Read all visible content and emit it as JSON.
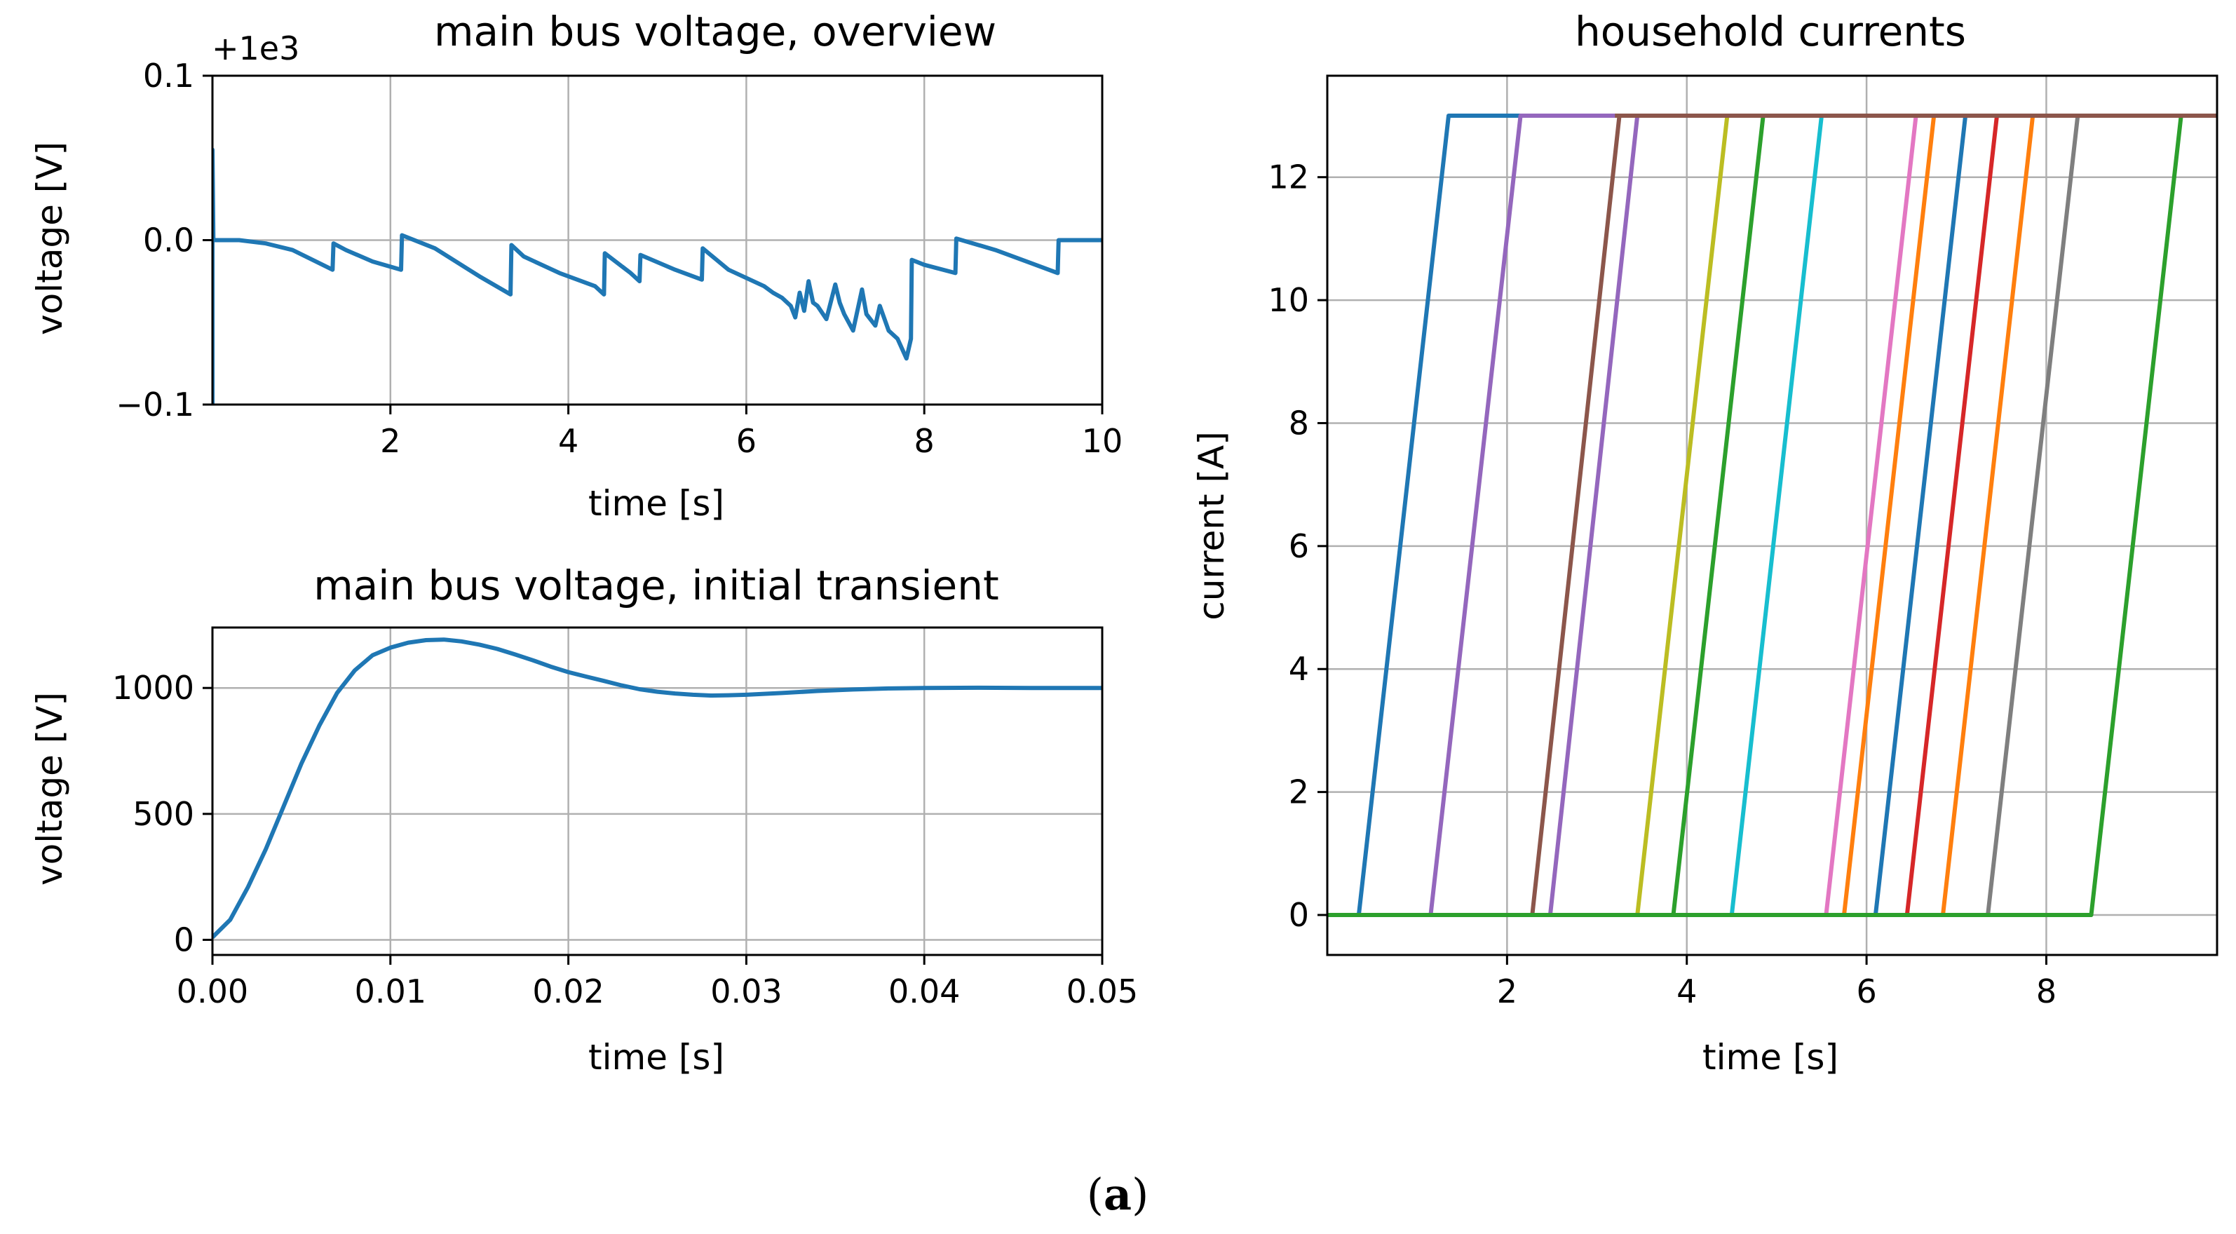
{
  "caption": {
    "open": "(",
    "letter": "a",
    "close": ")"
  },
  "chart_data": [
    {
      "type": "line",
      "title": "main bus voltage, overview",
      "offset_text": "+1e3",
      "xlabel": "time [s]",
      "ylabel": "voltage [V]",
      "xlim": [
        0.0,
        10.0
      ],
      "ylim": [
        -0.1,
        0.1
      ],
      "xticks": [
        2,
        4,
        6,
        8,
        10
      ],
      "xtick_labels": [
        "2",
        "4",
        "6",
        "8",
        "10"
      ],
      "yticks": [
        -0.1,
        0.0,
        0.1
      ],
      "ytick_labels": [
        "−0.1",
        "0.0",
        "0.1"
      ],
      "grid": true,
      "series": [
        {
          "color": "#1f77b4",
          "x": [
            0.0,
            0.0,
            0.01,
            0.01,
            0.3,
            0.6,
            0.9,
            1.2,
            1.35,
            1.36,
            1.5,
            1.8,
            2.12,
            2.13,
            2.5,
            3.0,
            3.35,
            3.36,
            3.5,
            3.9,
            4.3,
            4.4,
            4.41,
            4.7,
            4.8,
            4.81,
            5.2,
            5.5,
            5.51,
            5.8,
            6.2,
            6.3,
            6.4,
            6.5,
            6.55,
            6.6,
            6.65,
            6.7,
            6.75,
            6.8,
            6.9,
            7.0,
            7.05,
            7.1,
            7.2,
            7.3,
            7.35,
            7.45,
            7.5,
            7.6,
            7.7,
            7.8,
            7.85,
            7.86,
            8.0,
            8.35,
            8.36,
            8.8,
            9.2,
            9.5,
            9.51,
            10.0
          ],
          "y": [
            -0.1,
            0.055,
            0.0,
            0.0,
            0.0,
            -0.002,
            -0.006,
            -0.014,
            -0.018,
            -0.002,
            -0.006,
            -0.013,
            -0.018,
            0.003,
            -0.005,
            -0.022,
            -0.033,
            -0.003,
            -0.01,
            -0.02,
            -0.028,
            -0.033,
            -0.008,
            -0.02,
            -0.025,
            -0.009,
            -0.018,
            -0.024,
            -0.005,
            -0.018,
            -0.028,
            -0.032,
            -0.035,
            -0.04,
            -0.047,
            -0.032,
            -0.043,
            -0.025,
            -0.038,
            -0.04,
            -0.048,
            -0.027,
            -0.038,
            -0.045,
            -0.055,
            -0.03,
            -0.045,
            -0.052,
            -0.04,
            -0.055,
            -0.06,
            -0.072,
            -0.06,
            -0.012,
            -0.015,
            -0.02,
            0.001,
            -0.006,
            -0.014,
            -0.02,
            0.0,
            0.0
          ]
        }
      ]
    },
    {
      "type": "line",
      "title": "main bus voltage, initial transient",
      "xlabel": "time [s]",
      "ylabel": "voltage [V]",
      "xlim": [
        0.0,
        0.05
      ],
      "ylim": [
        -60,
        1240
      ],
      "xticks": [
        0.0,
        0.01,
        0.02,
        0.03,
        0.04,
        0.05
      ],
      "xtick_labels": [
        "0.00",
        "0.01",
        "0.02",
        "0.03",
        "0.04",
        "0.05"
      ],
      "yticks": [
        0,
        500,
        1000
      ],
      "ytick_labels": [
        "0",
        "500",
        "1000"
      ],
      "grid": true,
      "series": [
        {
          "color": "#1f77b4",
          "x": [
            0.0,
            0.001,
            0.002,
            0.003,
            0.004,
            0.005,
            0.006,
            0.007,
            0.008,
            0.009,
            0.01,
            0.011,
            0.012,
            0.013,
            0.014,
            0.015,
            0.016,
            0.017,
            0.018,
            0.019,
            0.02,
            0.021,
            0.022,
            0.023,
            0.024,
            0.025,
            0.026,
            0.027,
            0.028,
            0.029,
            0.03,
            0.032,
            0.034,
            0.036,
            0.038,
            0.04,
            0.043,
            0.046,
            0.05
          ],
          "y": [
            10,
            80,
            210,
            360,
            530,
            700,
            850,
            980,
            1070,
            1130,
            1160,
            1180,
            1190,
            1192,
            1185,
            1172,
            1155,
            1133,
            1110,
            1085,
            1063,
            1045,
            1028,
            1010,
            995,
            985,
            978,
            973,
            970,
            971,
            973,
            980,
            988,
            994,
            998,
            1000,
            1001,
            1000,
            1000
          ]
        }
      ]
    },
    {
      "type": "line",
      "title": "household currents",
      "xlabel": "time [s]",
      "ylabel": "current [A]",
      "xlim": [
        0.0,
        9.9
      ],
      "ylim": [
        -0.65,
        13.65
      ],
      "xticks": [
        2,
        4,
        6,
        8
      ],
      "xtick_labels": [
        "2",
        "4",
        "6",
        "8"
      ],
      "yticks": [
        0,
        2,
        4,
        6,
        8,
        10,
        12
      ],
      "ytick_labels": [
        "0",
        "2",
        "4",
        "6",
        "8",
        "10",
        "12"
      ],
      "grid": true,
      "series": [
        {
          "color": "#1f77b4",
          "x": [
            0.0,
            0.35,
            1.35,
            9.9
          ],
          "y": [
            0,
            0,
            13,
            13
          ]
        },
        {
          "color": "#9467bd",
          "x": [
            0.0,
            1.15,
            2.15,
            9.9
          ],
          "y": [
            0,
            0,
            13,
            13
          ]
        },
        {
          "color": "#8c564b",
          "x": [
            0.0,
            2.28,
            3.25,
            9.9
          ],
          "y": [
            0,
            0,
            13,
            13
          ]
        },
        {
          "color": "#9467bd",
          "x": [
            0.0,
            2.48,
            3.45,
            9.9
          ],
          "y": [
            0,
            0,
            13,
            13
          ]
        },
        {
          "color": "#bcbd22",
          "x": [
            0.0,
            3.45,
            4.45,
            9.9
          ],
          "y": [
            0,
            0,
            13,
            13
          ]
        },
        {
          "color": "#2ca02c",
          "x": [
            0.0,
            3.85,
            4.85,
            9.9
          ],
          "y": [
            0,
            0,
            13,
            13
          ]
        },
        {
          "color": "#17becf",
          "x": [
            0.0,
            4.5,
            5.5,
            9.9
          ],
          "y": [
            0,
            0,
            13,
            13
          ]
        },
        {
          "color": "#e377c2",
          "x": [
            0.0,
            5.55,
            6.55,
            9.9
          ],
          "y": [
            0,
            0,
            13,
            13
          ]
        },
        {
          "color": "#ff7f0e",
          "x": [
            0.0,
            5.75,
            6.75,
            9.9
          ],
          "y": [
            0,
            0,
            13,
            13
          ]
        },
        {
          "color": "#1f77b4",
          "x": [
            0.0,
            6.1,
            7.1,
            9.9
          ],
          "y": [
            0,
            0,
            13,
            13
          ]
        },
        {
          "color": "#d62728",
          "x": [
            0.0,
            6.45,
            7.45,
            9.9
          ],
          "y": [
            0,
            0,
            13,
            13
          ]
        },
        {
          "color": "#ff7f0e",
          "x": [
            0.0,
            6.85,
            7.85,
            9.9
          ],
          "y": [
            0,
            0,
            13,
            13
          ]
        },
        {
          "color": "#7f7f7f",
          "x": [
            0.0,
            7.35,
            8.35,
            9.9
          ],
          "y": [
            0,
            0,
            13,
            13
          ]
        },
        {
          "color": "#2ca02c",
          "x": [
            0.0,
            8.5,
            9.5,
            9.9
          ],
          "y": [
            0,
            0,
            13,
            13
          ]
        },
        {
          "color": "#8c564b",
          "x": [
            3.2,
            9.9
          ],
          "y": [
            13,
            13
          ]
        }
      ]
    }
  ]
}
